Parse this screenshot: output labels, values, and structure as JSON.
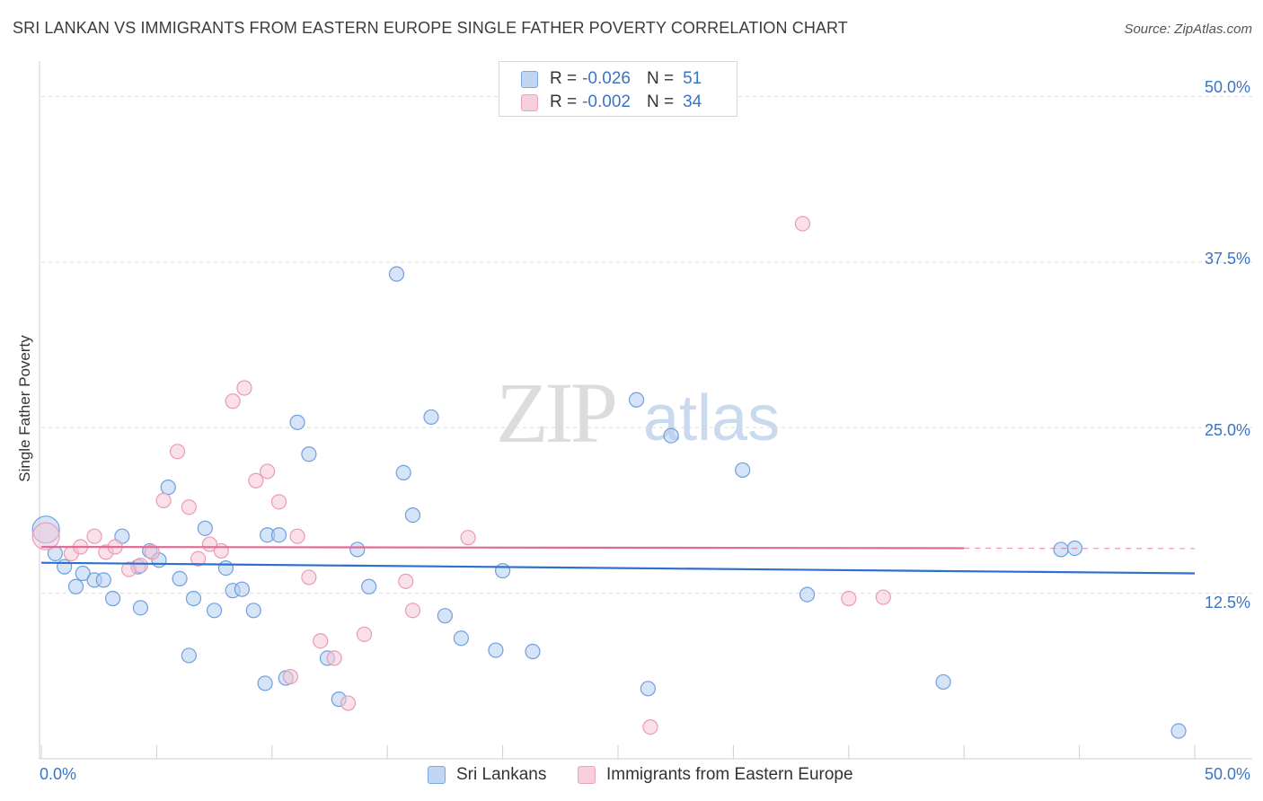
{
  "chart_data": {
    "type": "scatter",
    "title": "SRI LANKAN VS IMMIGRANTS FROM EASTERN EUROPE SINGLE FATHER POVERTY CORRELATION CHART",
    "source": "Source: ZipAtlas.com",
    "ylabel": "Single Father Poverty",
    "xlabel": "",
    "xlim": [
      0,
      50
    ],
    "ylim": [
      0,
      52
    ],
    "x_tick_labels": [
      "0.0%",
      "50.0%"
    ],
    "y_ticks": [
      12.5,
      25.0,
      37.5,
      50.0
    ],
    "y_tick_labels": [
      "12.5%",
      "25.0%",
      "37.5%",
      "50.0%"
    ],
    "watermark": "ZIPatlas",
    "series": [
      {
        "name": "Sri Lankans",
        "color": "#6f9fe0",
        "fill": "#b4cdf0",
        "line_color": "#2f6fcd",
        "r": "-0.026",
        "n": "51",
        "trend": {
          "x0": 0,
          "y0": 14.8,
          "x1": 50,
          "y1": 14.0
        },
        "points": [
          [
            0.2,
            17.3,
            "big"
          ],
          [
            0.6,
            15.5
          ],
          [
            1.0,
            14.5
          ],
          [
            1.5,
            13.0
          ],
          [
            1.8,
            14.0
          ],
          [
            2.3,
            13.5
          ],
          [
            2.7,
            13.5
          ],
          [
            3.1,
            12.1
          ],
          [
            3.5,
            16.8
          ],
          [
            4.2,
            14.5
          ],
          [
            4.3,
            11.4
          ],
          [
            4.7,
            15.7
          ],
          [
            5.1,
            15.0
          ],
          [
            5.5,
            20.5
          ],
          [
            6.0,
            13.6
          ],
          [
            6.4,
            7.8
          ],
          [
            6.6,
            12.1
          ],
          [
            7.1,
            17.4
          ],
          [
            7.5,
            11.2
          ],
          [
            8.0,
            14.4
          ],
          [
            8.3,
            12.7
          ],
          [
            8.7,
            12.8
          ],
          [
            9.2,
            11.2
          ],
          [
            9.7,
            5.7
          ],
          [
            9.8,
            16.9
          ],
          [
            10.3,
            16.9
          ],
          [
            10.6,
            6.1
          ],
          [
            11.1,
            25.4
          ],
          [
            11.6,
            23.0
          ],
          [
            12.4,
            7.6
          ],
          [
            12.9,
            4.5
          ],
          [
            13.7,
            15.8
          ],
          [
            14.2,
            13.0
          ],
          [
            15.4,
            36.6
          ],
          [
            15.7,
            21.6
          ],
          [
            16.1,
            18.4
          ],
          [
            16.9,
            25.8
          ],
          [
            17.5,
            10.8
          ],
          [
            18.2,
            9.1
          ],
          [
            19.7,
            8.2
          ],
          [
            20.0,
            14.2
          ],
          [
            21.3,
            8.1
          ],
          [
            25.8,
            27.1
          ],
          [
            26.3,
            5.3
          ],
          [
            27.3,
            24.4
          ],
          [
            30.4,
            21.8
          ],
          [
            33.2,
            12.4
          ],
          [
            39.1,
            5.8
          ],
          [
            44.2,
            15.8
          ],
          [
            44.8,
            15.9
          ],
          [
            49.3,
            2.1
          ]
        ]
      },
      {
        "name": "Immigrants from Eastern Europe",
        "color": "#eb9ab5",
        "fill": "#f5c6d6",
        "line_color": "#e06b96",
        "r": "-0.002",
        "n": "34",
        "trend": {
          "x0": 0,
          "y0": 16.0,
          "x1": 40,
          "y1": 15.9,
          "dash_to": 50
        },
        "points": [
          [
            0.2,
            16.8,
            "big"
          ],
          [
            1.3,
            15.5
          ],
          [
            1.7,
            16.0
          ],
          [
            2.3,
            16.8
          ],
          [
            2.8,
            15.6
          ],
          [
            3.2,
            16.0
          ],
          [
            3.8,
            14.3
          ],
          [
            4.3,
            14.6
          ],
          [
            4.8,
            15.6
          ],
          [
            5.3,
            19.5
          ],
          [
            5.9,
            23.2
          ],
          [
            6.4,
            19.0
          ],
          [
            6.8,
            15.1
          ],
          [
            7.3,
            16.2
          ],
          [
            7.8,
            15.7
          ],
          [
            8.3,
            27.0
          ],
          [
            8.8,
            28.0
          ],
          [
            9.3,
            21.0
          ],
          [
            9.8,
            21.7
          ],
          [
            10.3,
            19.4
          ],
          [
            10.8,
            6.2
          ],
          [
            11.1,
            16.8
          ],
          [
            11.6,
            13.7
          ],
          [
            12.1,
            8.9
          ],
          [
            12.7,
            7.6
          ],
          [
            13.3,
            4.2
          ],
          [
            14.0,
            9.4
          ],
          [
            15.8,
            13.4
          ],
          [
            16.1,
            11.2
          ],
          [
            18.5,
            16.7
          ],
          [
            26.4,
            2.4
          ],
          [
            33.0,
            40.4
          ],
          [
            35.0,
            12.1
          ],
          [
            36.5,
            12.2
          ]
        ]
      }
    ]
  },
  "legend": {
    "r_label": "R =",
    "n_label": "N ="
  }
}
